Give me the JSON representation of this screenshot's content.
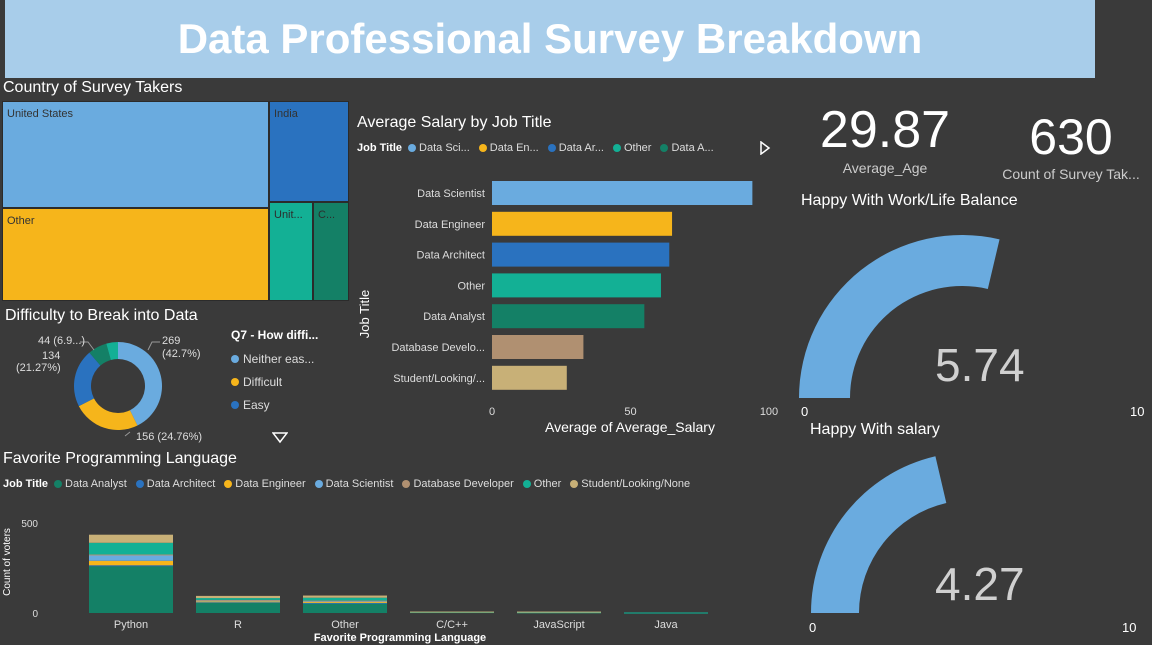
{
  "title": "Data Professional Survey Breakdown",
  "colors": {
    "data_scientist": "#6aabdf",
    "data_engineer": "#f6b51b",
    "data_architect": "#2a72bf",
    "other": "#13b095",
    "data_analyst": "#148066",
    "database_developer": "#b09071",
    "student": "#c8b077",
    "neither": "#6aabdf",
    "gauge": "#6aabdf"
  },
  "treemap": {
    "title": "Country of Survey Takers",
    "labels": {
      "us": "United States",
      "india": "India",
      "other": "Other",
      "uk": "Unit...",
      "c": "C..."
    }
  },
  "donut": {
    "title": "Difficulty to Break into Data",
    "legend_title": "Q7 - How diffi...",
    "legend": [
      "Neither eas...",
      "Difficult",
      "Easy"
    ],
    "labels": {
      "a": "44 (6.9...)",
      "b_1": "134",
      "b_2": "(21.27%)",
      "c_1": "269",
      "c_2": "(42.7%)",
      "d": "156 (24.76%)"
    },
    "chart_data": {
      "type": "pie",
      "slices": [
        {
          "name": "Neither easy nor difficult",
          "value": 269,
          "pct": 42.7
        },
        {
          "name": "Difficult",
          "value": 156,
          "pct": 24.76
        },
        {
          "name": "Easy",
          "value": 134,
          "pct": 21.27
        },
        {
          "name": "",
          "value": 44,
          "pct": 6.98
        },
        {
          "name": "",
          "value": 27,
          "pct": 4.29
        }
      ]
    }
  },
  "salary": {
    "title": "Average Salary by Job Title",
    "legend_title": "Job Title",
    "legend": [
      "Data Sci...",
      "Data En...",
      "Data Ar...",
      "Other",
      "Data A..."
    ],
    "ylabel": "Job Title",
    "xlabel": "Average of Average_Salary",
    "chart_data": {
      "type": "bar",
      "orientation": "horizontal",
      "categories": [
        "Data Scientist",
        "Data Engineer",
        "Data Architect",
        "Other",
        "Data Analyst",
        "Database Develo...",
        "Student/Looking/..."
      ],
      "values": [
        94,
        65,
        64,
        61,
        55,
        33,
        27
      ],
      "xlim": [
        0,
        100
      ],
      "ticks": [
        "0",
        "50",
        "100"
      ]
    }
  },
  "kpi_age": {
    "value": "29.87",
    "label": "Average_Age"
  },
  "kpi_count": {
    "value": "630",
    "label": "Count of Survey Tak..."
  },
  "gauge_balance": {
    "title": "Happy With Work/Life Balance",
    "value": "5.74",
    "min": "0",
    "max": "10",
    "level": 0.574
  },
  "gauge_salary": {
    "title": "Happy With salary",
    "value": "4.27",
    "min": "0",
    "max": "10",
    "level": 0.427
  },
  "languages": {
    "title": "Favorite Programming Language",
    "legend_title": "Job Title",
    "legend": [
      "Data Analyst",
      "Data Architect",
      "Data Engineer",
      "Data Scientist",
      "Database Developer",
      "Other",
      "Student/Looking/None"
    ],
    "ylabel": "Count of voters",
    "xlabel": "Favorite Programming Language",
    "chart_data": {
      "type": "bar",
      "stacked": true,
      "categories": [
        "Python",
        "R",
        "Other",
        "C/C++",
        "JavaScript",
        "Java"
      ],
      "ylim": [
        0,
        600
      ],
      "yticks": [
        "500",
        "0"
      ],
      "series": [
        {
          "name": "Data Analyst",
          "values": [
            260,
            60,
            55,
            5,
            3,
            2
          ]
        },
        {
          "name": "Data Architect",
          "values": [
            5,
            2,
            2,
            0,
            0,
            0
          ]
        },
        {
          "name": "Data Engineer",
          "values": [
            25,
            3,
            4,
            0,
            0,
            0
          ]
        },
        {
          "name": "Data Scientist",
          "values": [
            30,
            5,
            5,
            0,
            0,
            0
          ]
        },
        {
          "name": "Database Developer",
          "values": [
            5,
            3,
            3,
            0,
            2,
            0
          ]
        },
        {
          "name": "Other",
          "values": [
            65,
            10,
            16,
            2,
            1,
            1
          ]
        },
        {
          "name": "Student/Looking/None",
          "values": [
            45,
            12,
            12,
            1,
            2,
            0
          ]
        }
      ]
    }
  }
}
